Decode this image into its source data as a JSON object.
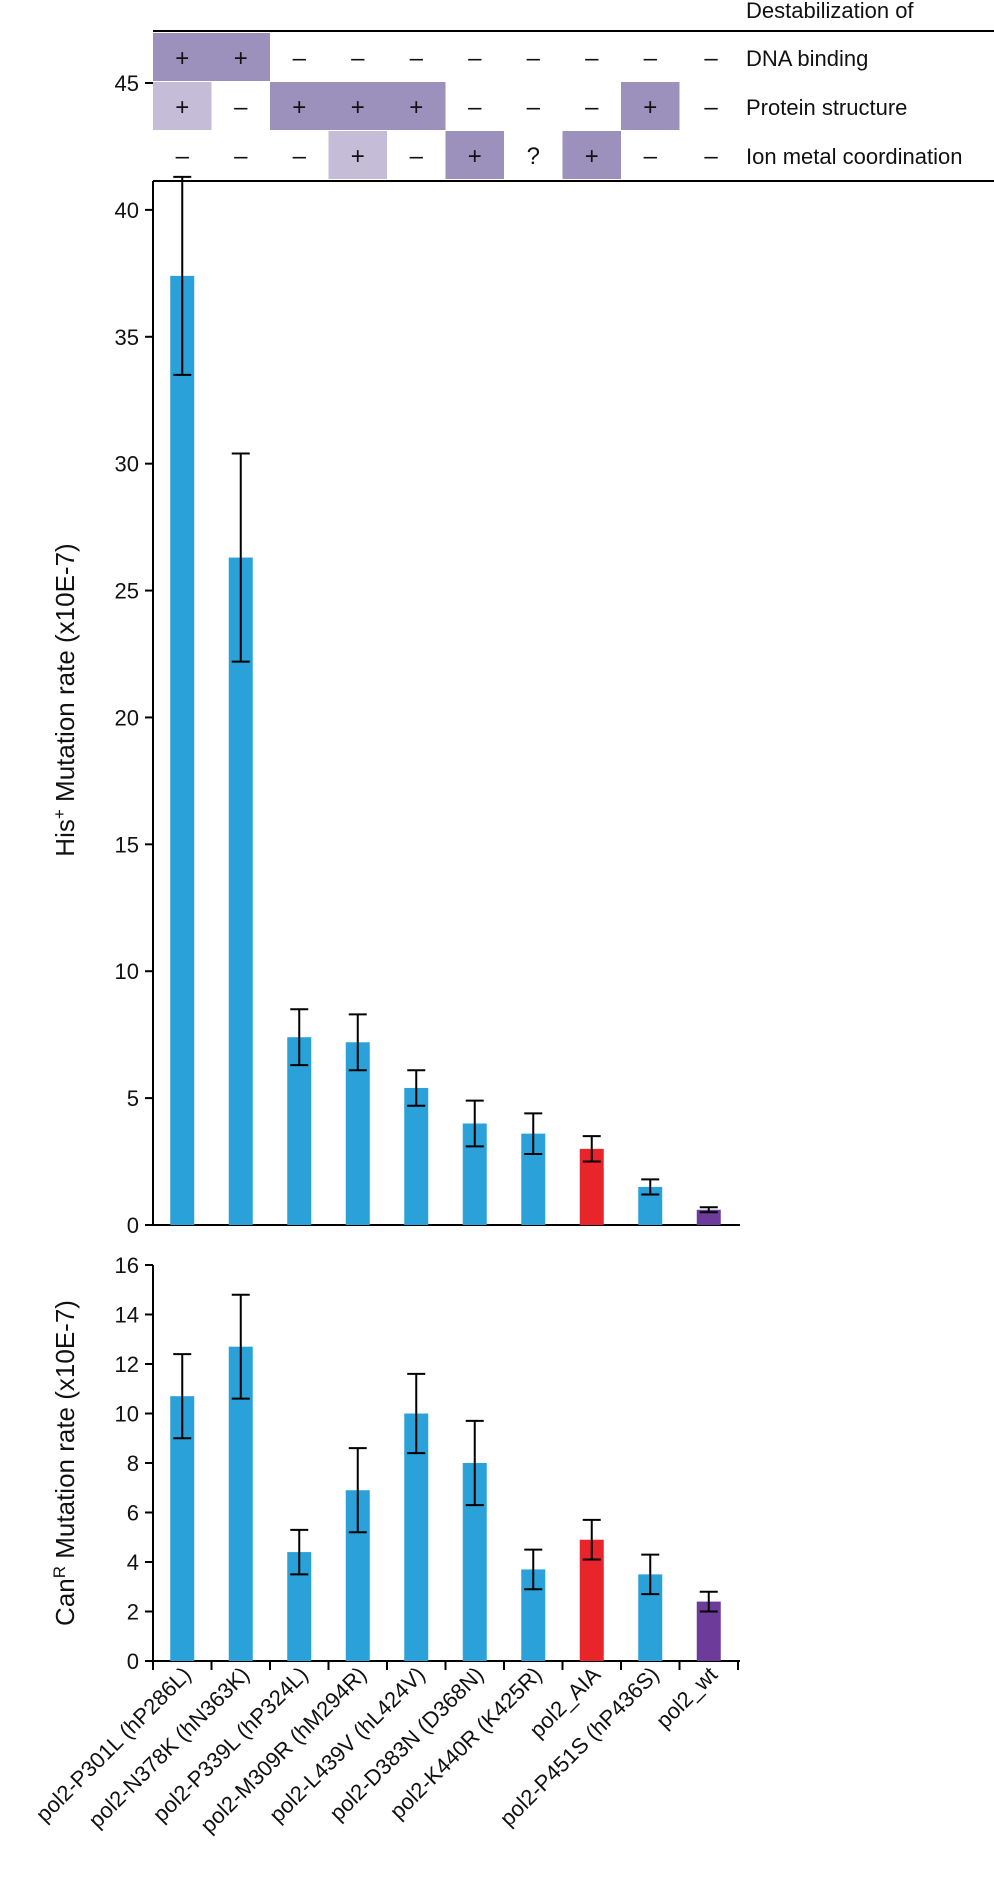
{
  "colors": {
    "mutant": "#2aa1d9",
    "AIA": "#e8252a",
    "wt": "#6d3b9a",
    "cell_strong": "#9c90bd",
    "cell_light": "#c5bcd8",
    "axis": "#000000"
  },
  "table": {
    "title": "Destabilization of",
    "rows": [
      {
        "label": "DNA binding",
        "cells": [
          "+",
          "+",
          "–",
          "–",
          "–",
          "–",
          "–",
          "–",
          "–"
        ],
        "shading": [
          "strong",
          "strong",
          "none",
          "none",
          "none",
          "none",
          "none",
          "none",
          "none"
        ],
        "wt": "–"
      },
      {
        "label": "Protein structure",
        "cells": [
          "+",
          "–",
          "+",
          "+",
          "+",
          "–",
          "–",
          "–",
          "+"
        ],
        "shading": [
          "light",
          "none",
          "strong",
          "strong",
          "strong",
          "none",
          "none",
          "none",
          "strong"
        ],
        "wt": "–"
      },
      {
        "label": "Ion metal coordination",
        "cells": [
          "–",
          "–",
          "–",
          "+",
          "–",
          "+",
          "?",
          "+",
          "–"
        ],
        "shading": [
          "none",
          "none",
          "none",
          "light",
          "none",
          "strong",
          "none",
          "strong",
          "none"
        ],
        "wt": "–"
      }
    ]
  },
  "chart_data": [
    {
      "type": "bar",
      "categories": [
        "pol2-P301L (hP286L)",
        "pol2-N378K (hN363K)",
        "pol2-P339L (hP324L)",
        "pol2-M309R (hM294R)",
        "pol2-L439V (hL424V)",
        "pol2-D383N (D368N)",
        "pol2-K440R (K425R)",
        "pol2_AIA",
        "pol2-P451S (hP436S)",
        "pol2_wt"
      ],
      "values": [
        37.4,
        26.3,
        7.4,
        7.2,
        5.4,
        4.0,
        3.6,
        3.0,
        1.5,
        0.6
      ],
      "errors": [
        3.9,
        4.1,
        1.1,
        1.1,
        0.7,
        0.9,
        0.8,
        0.5,
        0.3,
        0.1
      ],
      "ylabel_main": "His",
      "ylabel_sup": "+",
      "ylabel_rest": " Mutation rate (x10E-7)",
      "ylim": [
        0,
        45
      ],
      "yticks": [
        "0",
        "5",
        "10",
        "15",
        "20",
        "25",
        "30",
        "35",
        "40",
        "45"
      ]
    },
    {
      "type": "bar",
      "categories": [
        "pol2-P301L (hP286L)",
        "pol2-N378K (hN363K)",
        "pol2-P339L (hP324L)",
        "pol2-M309R (hM294R)",
        "pol2-L439V (hL424V)",
        "pol2-D383N (D368N)",
        "pol2-K440R (K425R)",
        "pol2_AIA",
        "pol2-P451S (hP436S)",
        "pol2_wt"
      ],
      "values": [
        10.7,
        12.7,
        4.4,
        6.9,
        10.0,
        8.0,
        3.7,
        4.9,
        3.5,
        2.4
      ],
      "errors": [
        1.7,
        2.1,
        0.9,
        1.7,
        1.6,
        1.7,
        0.8,
        0.8,
        0.8,
        0.4
      ],
      "ylabel_main": "Can",
      "ylabel_sup": "R",
      "ylabel_rest": " Mutation rate (x10E-7)",
      "ylim": [
        0,
        16
      ],
      "yticks": [
        "0",
        "2",
        "4",
        "6",
        "8",
        "10",
        "12",
        "14",
        "16"
      ]
    }
  ]
}
